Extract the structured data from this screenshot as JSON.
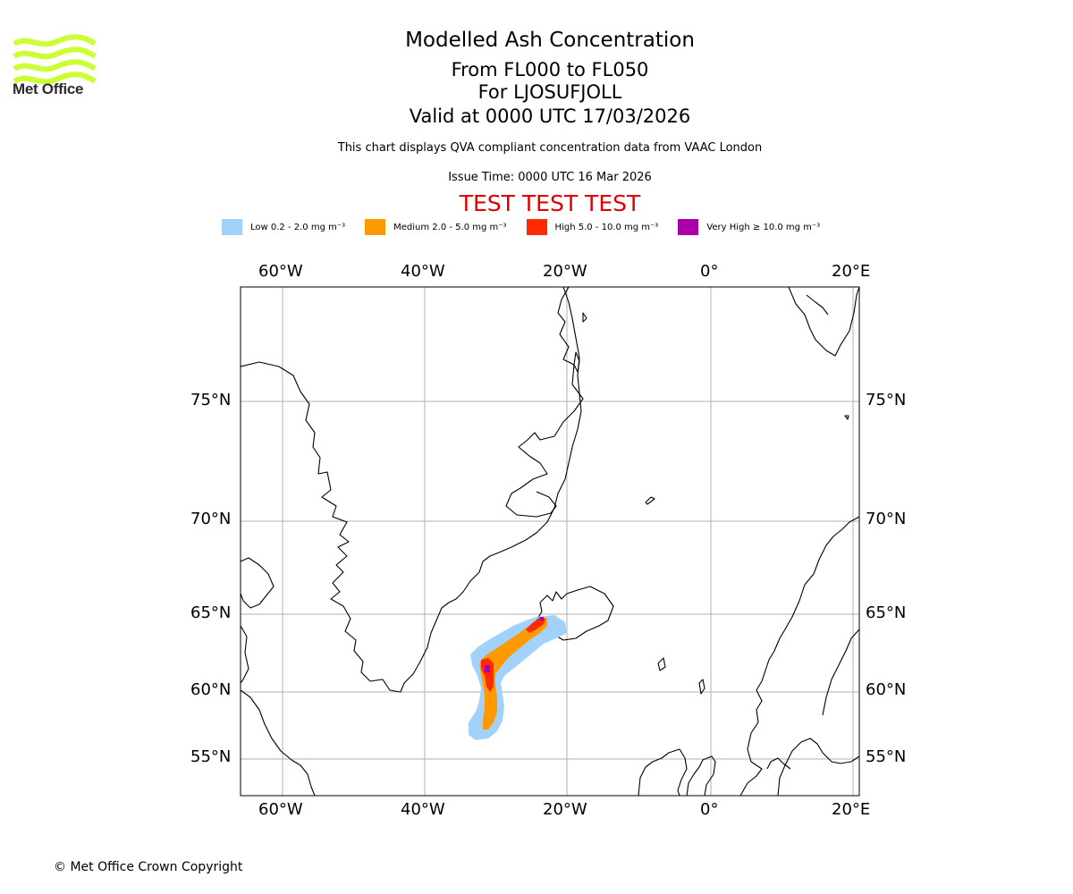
{
  "logo": {
    "text": "Met Office",
    "color": "#ccff33"
  },
  "header": {
    "title": "Modelled Ash Concentration",
    "level_range": "From FL000 to FL050",
    "volcano": "For LJOSUFJOLL",
    "valid_time": "Valid at 0000 UTC 17/03/2026",
    "description": "This chart displays QVA compliant concentration data from VAAC London",
    "issue_time": "Issue Time: 0000 UTC 16 Mar 2026",
    "test_banner": "TEST TEST TEST"
  },
  "legend": [
    {
      "label": "Low 0.2 - 2.0 mg m⁻³",
      "color": "#a2d2fa"
    },
    {
      "label": "Medium 2.0 - 5.0 mg m⁻³",
      "color": "#ff9900"
    },
    {
      "label": "High 5.0 - 10.0 mg m⁻³",
      "color": "#ff2a00"
    },
    {
      "label": "Very High ≥ 10.0 mg m⁻³",
      "color": "#aa00aa"
    }
  ],
  "map": {
    "lon_labels": [
      "60°W",
      "40°W",
      "20°W",
      "0°",
      "20°E"
    ],
    "lat_labels": [
      "75°N",
      "70°N",
      "65°N",
      "60°N",
      "55°N"
    ]
  },
  "footer": {
    "copyright": "© Met Office Crown Copyright"
  }
}
